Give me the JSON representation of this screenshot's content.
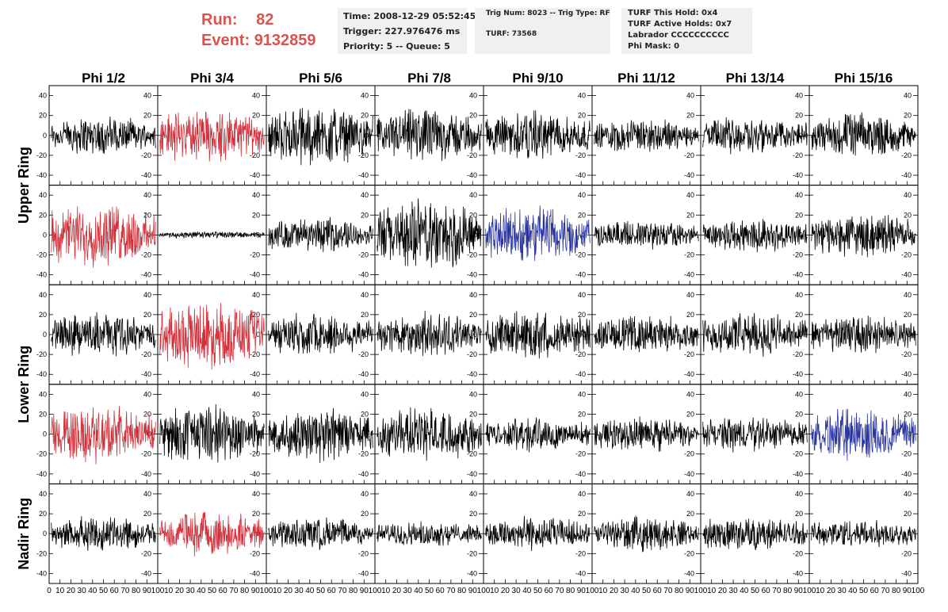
{
  "run_info": {
    "run_label": "Run:",
    "run_value": "82",
    "event_label": "Event:",
    "event_value": "9132859"
  },
  "time_box": {
    "time": "Time: 2008-12-29 05:52:45",
    "trigger": "Trigger: 227.976476 ms",
    "priority": "Priority: 5 -- Queue: 5"
  },
  "trig_box": {
    "trig_num": "Trig Num: 8023 -- Trig Type: RF",
    "turf": "TURF: 73568"
  },
  "turf_box": {
    "this_hold": "TURF This Hold: 0x4",
    "active_holds": "TURF Active Holds: 0x7",
    "labrador": "Labrador CCCCCCCCCC",
    "phi_mask": "Phi Mask: 0"
  },
  "colors": {
    "normal": "#000000",
    "triggered": "#d0303a",
    "hpol": "#2a35a0",
    "title_red": "#d9534f"
  },
  "chart_data": {
    "type": "line",
    "columns": [
      "Phi 1/2",
      "Phi 3/4",
      "Phi 5/6",
      "Phi 7/8",
      "Phi 9/10",
      "Phi 11/12",
      "Phi 13/14",
      "Phi 15/16"
    ],
    "ring_labels": [
      "Upper Ring",
      "Lower Ring",
      "Nadir Ring"
    ],
    "rows": 5,
    "xlim": [
      0,
      100
    ],
    "ylim": [
      -50,
      50
    ],
    "x_ticks": [
      0,
      10,
      20,
      30,
      40,
      50,
      60,
      70,
      80,
      90,
      100
    ],
    "y_ticks": [
      -40,
      -20,
      0,
      20,
      40
    ],
    "waveform_points": 260,
    "panels": [
      [
        {
          "amp": 16,
          "color": "normal"
        },
        {
          "amp": 22,
          "color": "triggered"
        },
        {
          "amp": 24,
          "color": "normal"
        },
        {
          "amp": 22,
          "color": "normal"
        },
        {
          "amp": 20,
          "color": "normal"
        },
        {
          "amp": 14,
          "color": "normal"
        },
        {
          "amp": 16,
          "color": "normal"
        },
        {
          "amp": 18,
          "color": "normal"
        }
      ],
      [
        {
          "amp": 26,
          "color": "triggered"
        },
        {
          "amp": 3,
          "color": "normal"
        },
        {
          "amp": 14,
          "color": "normal"
        },
        {
          "amp": 30,
          "color": "normal"
        },
        {
          "amp": 24,
          "color": "hpol"
        },
        {
          "amp": 12,
          "color": "normal"
        },
        {
          "amp": 14,
          "color": "normal"
        },
        {
          "amp": 18,
          "color": "normal"
        }
      ],
      [
        {
          "amp": 18,
          "color": "normal"
        },
        {
          "amp": 28,
          "color": "triggered"
        },
        {
          "amp": 18,
          "color": "normal"
        },
        {
          "amp": 18,
          "color": "normal"
        },
        {
          "amp": 20,
          "color": "normal"
        },
        {
          "amp": 16,
          "color": "normal"
        },
        {
          "amp": 18,
          "color": "normal"
        },
        {
          "amp": 16,
          "color": "normal"
        }
      ],
      [
        {
          "amp": 24,
          "color": "triggered"
        },
        {
          "amp": 24,
          "color": "normal"
        },
        {
          "amp": 22,
          "color": "normal"
        },
        {
          "amp": 22,
          "color": "normal"
        },
        {
          "amp": 14,
          "color": "normal"
        },
        {
          "amp": 14,
          "color": "normal"
        },
        {
          "amp": 14,
          "color": "normal"
        },
        {
          "amp": 22,
          "color": "hpol"
        }
      ],
      [
        {
          "amp": 14,
          "color": "normal"
        },
        {
          "amp": 18,
          "color": "triggered"
        },
        {
          "amp": 14,
          "color": "normal"
        },
        {
          "amp": 10,
          "color": "normal"
        },
        {
          "amp": 14,
          "color": "normal"
        },
        {
          "amp": 14,
          "color": "normal"
        },
        {
          "amp": 14,
          "color": "normal"
        },
        {
          "amp": 12,
          "color": "normal"
        }
      ]
    ]
  }
}
